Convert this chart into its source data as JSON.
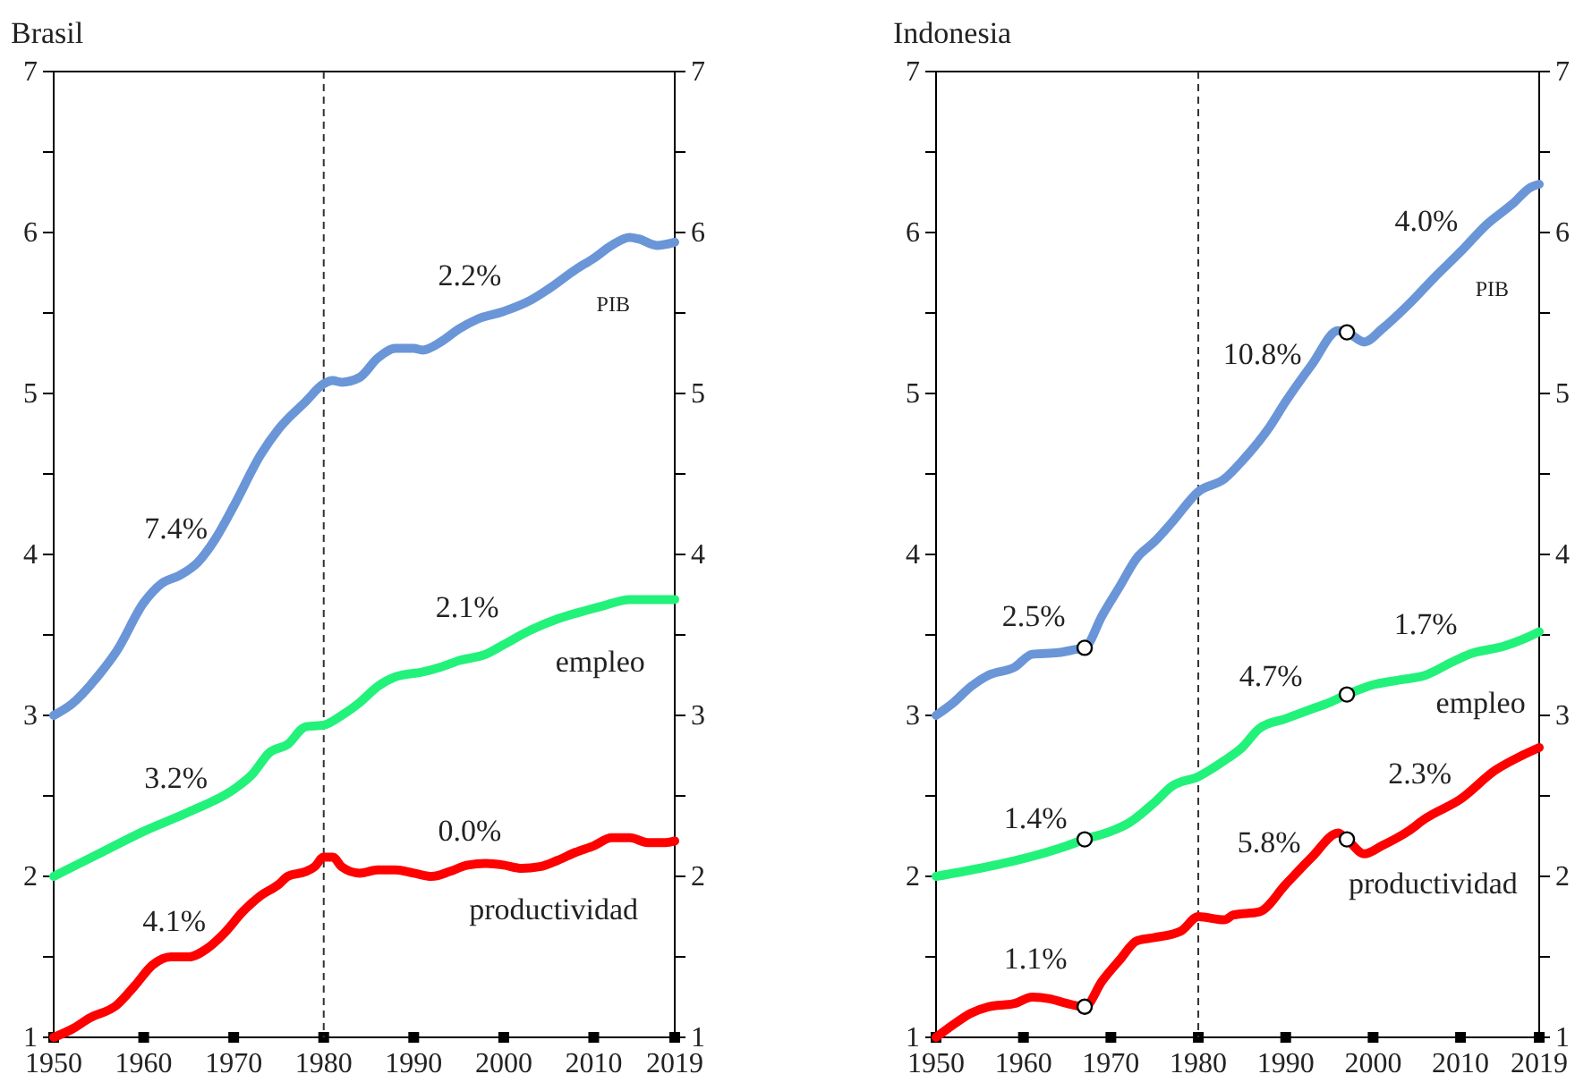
{
  "chart_data": [
    {
      "type": "line",
      "title": "Brasil",
      "xlim": [
        1950,
        2019
      ],
      "xticks": [
        1950,
        1960,
        1970,
        1980,
        1990,
        2000,
        2010,
        2019
      ],
      "ylim": [
        1,
        7
      ],
      "yticks": [
        1,
        {
          "value": 1.5,
          "label": null
        },
        2,
        {
          "value": 2.5,
          "label": null
        },
        3,
        {
          "value": 3.5,
          "label": null
        },
        4,
        {
          "value": 4.5,
          "label": null
        },
        5,
        {
          "value": 5.5,
          "label": null
        },
        6,
        {
          "value": 6.5,
          "label": null
        },
        7
      ],
      "y2lim": [
        1,
        7
      ],
      "y2ticks": [
        1,
        {
          "value": 1.5,
          "label": null
        },
        2,
        {
          "value": 2.5,
          "label": null
        },
        3,
        {
          "value": 3.5,
          "label": null
        },
        4,
        {
          "value": 4.5,
          "label": null
        },
        5,
        {
          "value": 5.5,
          "label": null
        },
        6,
        {
          "value": 6.5,
          "label": null
        },
        7
      ],
      "grid": false,
      "legend": false,
      "line_style": "solid",
      "marker": "none",
      "ref_lines": [
        {
          "axis": "x",
          "value": 1980,
          "label": null,
          "color": "#333333",
          "line_style": "dashed"
        }
      ],
      "annotations": [
        "7.4%",
        "2.2%",
        "3.2%",
        "2.1%",
        "4.1%",
        "0.0%"
      ],
      "series": [
        {
          "name": "PIB",
          "color": "#6a96d8",
          "x": [
            1950,
            1952,
            1955,
            1957,
            1960,
            1962,
            1964,
            1966,
            1968,
            1970,
            1973,
            1975,
            1978,
            1980,
            1981,
            1982,
            1984,
            1986,
            1988,
            1990,
            1991,
            1993,
            1995,
            1997,
            2000,
            2003,
            2005,
            2008,
            2010,
            2012,
            2014,
            2015,
            2017,
            2019
          ],
          "values": [
            3.0,
            3.07,
            3.25,
            3.4,
            3.7,
            3.82,
            3.87,
            3.95,
            4.1,
            4.3,
            4.62,
            4.78,
            4.95,
            5.06,
            5.08,
            5.07,
            5.1,
            5.22,
            5.28,
            5.28,
            5.27,
            5.32,
            5.4,
            5.46,
            5.51,
            5.58,
            5.65,
            5.77,
            5.84,
            5.92,
            5.97,
            5.96,
            5.92,
            5.94
          ]
        },
        {
          "name": "empleo",
          "color": "#22f27a",
          "x": [
            1950,
            1955,
            1960,
            1965,
            1970,
            1972,
            1974,
            1976,
            1978,
            1980,
            1982,
            1984,
            1986,
            1988,
            1991,
            1993,
            1995,
            1998,
            2000,
            2003,
            2006,
            2009,
            2011,
            2014,
            2017,
            2019
          ],
          "values": [
            2.0,
            2.14,
            2.28,
            2.4,
            2.54,
            2.63,
            2.77,
            2.82,
            2.93,
            2.94,
            3.0,
            3.08,
            3.18,
            3.24,
            3.27,
            3.3,
            3.34,
            3.38,
            3.44,
            3.53,
            3.6,
            3.65,
            3.68,
            3.72,
            3.72,
            3.72
          ]
        },
        {
          "name": "productividad",
          "color": "#ff0000",
          "x": [
            1950,
            1952,
            1954,
            1957,
            1959,
            1961,
            1963,
            1965,
            1967,
            1969,
            1971,
            1973,
            1975,
            1976,
            1978,
            1979,
            1980,
            1981,
            1982,
            1984,
            1986,
            1988,
            1990,
            1992,
            1994,
            1996,
            1998,
            2000,
            2002,
            2004,
            2006,
            2008,
            2010,
            2012,
            2014,
            2016,
            2018,
            2019
          ],
          "values": [
            1.0,
            1.05,
            1.12,
            1.2,
            1.32,
            1.45,
            1.5,
            1.5,
            1.55,
            1.65,
            1.78,
            1.88,
            1.95,
            2.0,
            2.03,
            2.06,
            2.12,
            2.12,
            2.06,
            2.02,
            2.04,
            2.04,
            2.02,
            2.0,
            2.03,
            2.07,
            2.08,
            2.07,
            2.05,
            2.06,
            2.1,
            2.15,
            2.19,
            2.24,
            2.24,
            2.21,
            2.21,
            2.22
          ]
        }
      ]
    },
    {
      "type": "line",
      "title": "Indonesia",
      "xlim": [
        1950,
        2019
      ],
      "xticks": [
        1950,
        1960,
        1970,
        1980,
        1990,
        2000,
        2010,
        2019
      ],
      "ylim": [
        1,
        7
      ],
      "yticks": [
        1,
        {
          "value": 1.5,
          "label": null
        },
        2,
        {
          "value": 2.5,
          "label": null
        },
        3,
        {
          "value": 3.5,
          "label": null
        },
        4,
        {
          "value": 4.5,
          "label": null
        },
        5,
        {
          "value": 5.5,
          "label": null
        },
        6,
        {
          "value": 6.5,
          "label": null
        },
        7
      ],
      "y2lim": [
        1,
        7
      ],
      "y2ticks": [
        1,
        {
          "value": 1.5,
          "label": null
        },
        2,
        {
          "value": 2.5,
          "label": null
        },
        3,
        {
          "value": 3.5,
          "label": null
        },
        4,
        {
          "value": 4.5,
          "label": null
        },
        5,
        {
          "value": 5.5,
          "label": null
        },
        6,
        {
          "value": 6.5,
          "label": null
        },
        7
      ],
      "grid": false,
      "legend": false,
      "line_style": "solid",
      "marker": "none",
      "ref_lines": [
        {
          "axis": "x",
          "value": 1980,
          "label": null,
          "color": "#333333",
          "line_style": "dashed"
        }
      ],
      "annotations": [
        "2.5%",
        "10.8%",
        "4.0%",
        "1.4%",
        "4.7%",
        "1.7%",
        "1.1%",
        "5.8%",
        "2.3%"
      ],
      "series": [
        {
          "name": "PIB",
          "color": "#6a96d8",
          "x": [
            1950,
            1952,
            1954,
            1956,
            1959,
            1961,
            1964,
            1966,
            1967,
            1969,
            1971,
            1973,
            1975,
            1977,
            1980,
            1983,
            1985,
            1988,
            1990,
            1993,
            1996,
            1997,
            1999,
            2001,
            2004,
            2007,
            2010,
            2013,
            2016,
            2018,
            2019
          ],
          "values": [
            3.0,
            3.08,
            3.18,
            3.25,
            3.3,
            3.38,
            3.39,
            3.41,
            3.42,
            3.62,
            3.8,
            3.98,
            4.08,
            4.2,
            4.39,
            4.47,
            4.58,
            4.78,
            4.95,
            5.18,
            5.39,
            5.38,
            5.32,
            5.4,
            5.55,
            5.72,
            5.88,
            6.05,
            6.18,
            6.28,
            6.3
          ]
        },
        {
          "name": "empleo",
          "color": "#22f27a",
          "x": [
            1950,
            1955,
            1960,
            1965,
            1967,
            1970,
            1972,
            1975,
            1977,
            1980,
            1983,
            1985,
            1987,
            1990,
            1993,
            1995,
            1997,
            2000,
            2003,
            2006,
            2009,
            2011,
            2015,
            2017,
            2019
          ],
          "values": [
            2.0,
            2.05,
            2.11,
            2.19,
            2.23,
            2.28,
            2.33,
            2.46,
            2.56,
            2.62,
            2.72,
            2.8,
            2.92,
            2.98,
            3.04,
            3.08,
            3.13,
            3.19,
            3.22,
            3.25,
            3.33,
            3.38,
            3.43,
            3.47,
            3.52
          ]
        },
        {
          "name": "productividad",
          "color": "#ff0000",
          "x": [
            1950,
            1952,
            1954,
            1956,
            1959,
            1961,
            1963,
            1965,
            1967,
            1969,
            1971,
            1973,
            1975,
            1978,
            1980,
            1983,
            1984,
            1987,
            1990,
            1993,
            1996,
            1997,
            1999,
            2001,
            2004,
            2006,
            2010,
            2014,
            2017,
            2019
          ],
          "values": [
            1.0,
            1.08,
            1.15,
            1.19,
            1.21,
            1.25,
            1.24,
            1.21,
            1.19,
            1.35,
            1.48,
            1.6,
            1.62,
            1.66,
            1.75,
            1.73,
            1.76,
            1.78,
            1.95,
            2.12,
            2.27,
            2.23,
            2.14,
            2.19,
            2.28,
            2.36,
            2.48,
            2.66,
            2.75,
            2.8
          ]
        },
        {
          "type": "scatter",
          "color": "#ffffff",
          "marker": "circle",
          "x": [
            1967,
            1967,
            1967,
            1997,
            1997,
            1997
          ],
          "values": [
            3.42,
            2.23,
            1.19,
            5.38,
            3.13,
            2.23
          ]
        }
      ]
    }
  ]
}
